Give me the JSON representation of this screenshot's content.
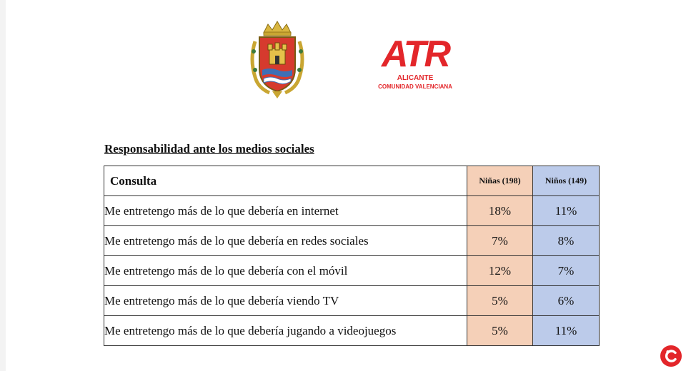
{
  "logos": {
    "crest_icon": "alicante-coat-of-arms",
    "atr": {
      "word": "ATR",
      "city": "ALICANTE",
      "region": "COMUNIDAD VALENCIANA",
      "color": "#e3262a"
    },
    "badge_icon": "news-site-badge-icon"
  },
  "document": {
    "title": "Responsabilidad ante los medios sociales"
  },
  "table": {
    "headers": {
      "consulta": "Consulta",
      "ninas": "Niñas (198)",
      "ninos": "Niños (149)"
    },
    "colors": {
      "ninas": "#f5d0b8",
      "ninos": "#bccbea"
    },
    "rows": [
      {
        "consulta": "Me entretengo más de lo que debería en internet",
        "ninas": "18%",
        "ninos": "11%"
      },
      {
        "consulta": "Me entretengo más de lo que debería en redes sociales",
        "ninas": "7%",
        "ninos": "8%"
      },
      {
        "consulta": "Me entretengo más de lo que debería con el móvil",
        "ninas": "12%",
        "ninos": "7%"
      },
      {
        "consulta": "Me entretengo más de lo que debería viendo TV",
        "ninas": "5%",
        "ninos": "6%"
      },
      {
        "consulta": "Me entretengo más de lo que debería jugando a videojuegos",
        "ninas": "5%",
        "ninos": "11%"
      }
    ]
  }
}
